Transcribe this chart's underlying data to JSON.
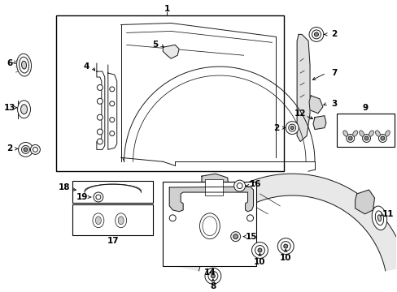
{
  "bg_color": "#ffffff",
  "fig_width": 4.89,
  "fig_height": 3.6,
  "dpi": 100,
  "line_color": "#1a1a1a",
  "lw": 0.7,
  "font_size": 7.5
}
